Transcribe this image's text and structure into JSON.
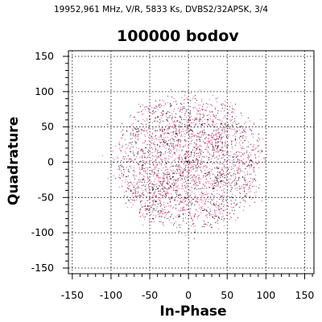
{
  "chart_data": {
    "type": "scatter",
    "subtitle": "19952,961 MHz, V/R, 5833 Ks, DVBS2/32APSK, 3/4",
    "title": "100000 bodov",
    "xlabel": "In-Phase",
    "ylabel": "Quadrature",
    "xlim": [
      -155,
      162
    ],
    "ylim": [
      -158,
      158
    ],
    "xticks": [
      -150,
      -100,
      -50,
      0,
      50,
      100,
      150
    ],
    "yticks": [
      -150,
      -100,
      -50,
      0,
      50,
      100,
      150
    ],
    "grid": true,
    "point_count": 100000,
    "cloud_radius": 95,
    "colors": {
      "sparse": "#000000",
      "low": "#1a1aff",
      "mid": "#5a3cd8",
      "high": "#e0306a",
      "grid": "#000000",
      "axis": "#000000"
    },
    "constellation_points": [
      [
        0,
        0
      ],
      [
        18,
        20
      ],
      [
        -20,
        18
      ],
      [
        -18,
        -20
      ],
      [
        20,
        -18
      ],
      [
        48,
        12
      ],
      [
        12,
        48
      ],
      [
        -12,
        48
      ],
      [
        -48,
        12
      ],
      [
        -48,
        -12
      ],
      [
        -12,
        -48
      ],
      [
        12,
        -48
      ],
      [
        48,
        -12
      ],
      [
        78,
        0
      ],
      [
        68,
        40
      ],
      [
        40,
        68
      ],
      [
        0,
        78
      ],
      [
        -40,
        68
      ],
      [
        -68,
        40
      ],
      [
        -78,
        0
      ],
      [
        -68,
        -40
      ],
      [
        -40,
        -68
      ],
      [
        0,
        -78
      ],
      [
        40,
        -68
      ],
      [
        68,
        -40
      ],
      [
        33,
        33
      ],
      [
        -33,
        33
      ],
      [
        -33,
        -33
      ],
      [
        33,
        -33
      ]
    ]
  }
}
